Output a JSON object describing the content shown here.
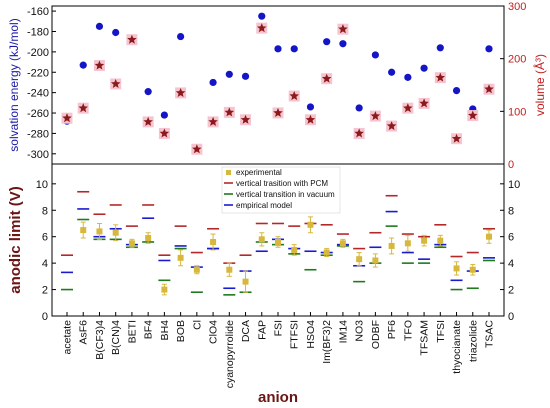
{
  "chart_data": [
    {
      "type": "scatter",
      "categories": [
        "acetate",
        "AsF6",
        "B(CF3)4",
        "B(CN)4",
        "BETI",
        "BF4",
        "BH4",
        "BOB",
        "Cl",
        "ClO4",
        "cyanopyrrolide",
        "DCA",
        "FAP",
        "FSI",
        "FTFSI",
        "HSO4",
        "Im(BF3)2",
        "IM14",
        "NO3",
        "ODBF",
        "PF6",
        "TFO",
        "TFSAM",
        "TFSI",
        "thyocianate",
        "triazolide",
        "TSAC"
      ],
      "left_axis": {
        "label": "solvation energy (kJ/mol)",
        "ylim": [
          -310,
          -155
        ],
        "ticks": [
          -300,
          -280,
          -260,
          -240,
          -220,
          -200,
          -180,
          -160
        ],
        "color": "#1a1aa8"
      },
      "right_axis": {
        "label": "volume (Å³)",
        "ylim": [
          0,
          300
        ],
        "ticks": [
          0,
          100,
          200,
          300
        ],
        "color": "#c21e1e"
      },
      "series": [
        {
          "name": "solvation energy",
          "axis": "left",
          "marker": "circle",
          "color": "#1515c8",
          "values": [
            -268,
            -213,
            -175,
            -181,
            -189,
            -239,
            -262,
            -185,
            -297,
            -230,
            -222,
            -224,
            -165,
            -197,
            -197,
            -254,
            -190,
            -192,
            -255,
            -203,
            -220,
            -225,
            -216,
            -196,
            -238,
            -256,
            -197
          ]
        },
        {
          "name": "volume",
          "axis": "right",
          "marker": "star",
          "color": "#8b1a1a",
          "values": [
            87,
            106,
            187,
            152,
            236,
            80,
            58,
            135,
            28,
            80,
            98,
            84,
            258,
            97,
            129,
            84,
            162,
            256,
            58,
            91,
            72,
            106,
            115,
            164,
            48,
            92,
            142
          ]
        }
      ]
    },
    {
      "type": "scatter",
      "ylabel": "anodic limit (V)",
      "xlabel": "anion",
      "ylim": [
        0,
        11.5
      ],
      "yticks": [
        0,
        2,
        4,
        6,
        8,
        10
      ],
      "legend_position": "top-center",
      "categories": [
        "acetate",
        "AsF6",
        "B(CF3)4",
        "B(CN)4",
        "BETI",
        "BF4",
        "BH4",
        "BOB",
        "Cl",
        "ClO4",
        "cyanopyrrolide",
        "DCA",
        "FAP",
        "FSI",
        "FTFSI",
        "HSO4",
        "Im(BF3)2",
        "IM14",
        "NO3",
        "ODBF",
        "PF6",
        "TFO",
        "TFSAM",
        "TFSI",
        "thyocianate",
        "triazolide",
        "TSAC"
      ],
      "series": [
        {
          "name": "experimental",
          "marker": "square",
          "color": "#d8b83c",
          "values": [
            null,
            6.5,
            6.4,
            6.3,
            5.5,
            5.9,
            2.0,
            4.4,
            3.5,
            5.6,
            3.5,
            2.6,
            5.8,
            5.6,
            5.0,
            6.9,
            4.8,
            5.5,
            4.3,
            4.2,
            5.3,
            5.5,
            5.7,
            5.7,
            3.6,
            3.5,
            6.0
          ],
          "errors": [
            null,
            0.6,
            0.6,
            0.6,
            0.3,
            0.4,
            0.4,
            0.6,
            0.3,
            0.6,
            0.5,
            0.8,
            0.5,
            0.4,
            0.4,
            0.6,
            0.3,
            0.3,
            0.5,
            0.5,
            0.6,
            0.6,
            0.4,
            0.4,
            0.5,
            0.4,
            0.5
          ]
        },
        {
          "name": "vertical trasition with PCM",
          "marker": "hline",
          "color": "#b5282a",
          "values": [
            4.6,
            9.4,
            7.7,
            8.4,
            6.8,
            8.4,
            4.6,
            6.8,
            4.8,
            6.6,
            4.0,
            4.6,
            7.0,
            7.0,
            6.8,
            7.0,
            6.9,
            6.2,
            5.1,
            6.3,
            9.1,
            6.2,
            6.0,
            6.9,
            4.5,
            4.8,
            6.6
          ]
        },
        {
          "name": "vertical transition in vacuum",
          "marker": "hline",
          "color": "#1f7a1f",
          "values": [
            2.0,
            7.3,
            5.8,
            5.8,
            5.2,
            5.6,
            2.7,
            5.1,
            1.8,
            5.1,
            1.6,
            1.8,
            5.6,
            5.4,
            4.7,
            3.5,
            4.6,
            5.3,
            2.6,
            4.0,
            6.8,
            4.0,
            4.0,
            5.2,
            2.0,
            2.1,
            4.2
          ]
        },
        {
          "name": "empirical model",
          "marker": "hline",
          "color": "#1a1ad0",
          "values": [
            3.3,
            8.1,
            6.0,
            6.6,
            5.4,
            7.4,
            4.2,
            5.3,
            3.7,
            5.1,
            2.1,
            3.4,
            4.9,
            5.8,
            5.1,
            4.9,
            4.8,
            5.4,
            3.8,
            5.2,
            7.9,
            4.8,
            4.3,
            5.4,
            2.7,
            3.4,
            4.4
          ]
        }
      ]
    }
  ]
}
